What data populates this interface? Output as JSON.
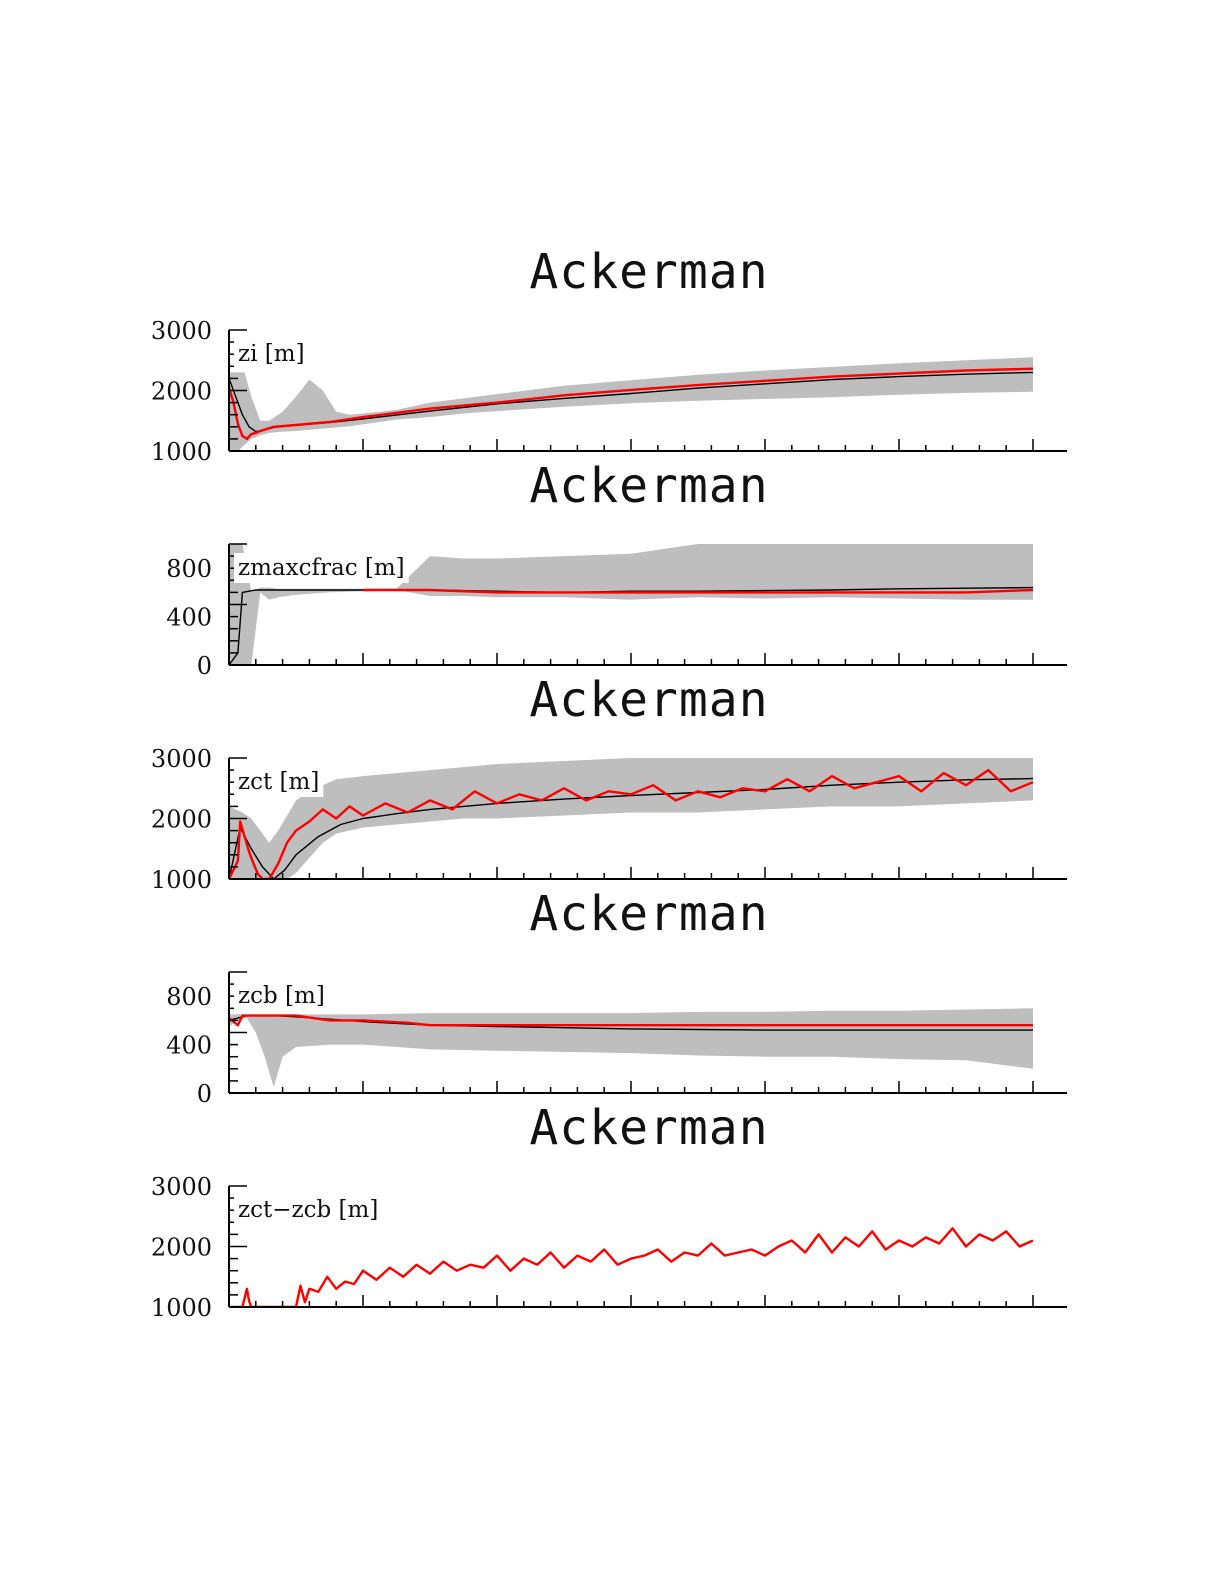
{
  "chart_data": [
    {
      "type": "line",
      "title": "Ackerman",
      "ylabel": "zi [m]",
      "ylim": [
        1000,
        3000
      ],
      "yticks": [
        "3000",
        "2000",
        "1000"
      ],
      "xlim": [
        0,
        360
      ],
      "xticks_major": [
        0,
        60,
        120,
        180,
        240,
        300,
        360
      ],
      "series": [
        {
          "role": "range",
          "color": "#bebebe",
          "x": [
            0,
            4,
            7,
            10,
            14,
            18,
            24,
            30,
            36,
            42,
            48,
            54,
            60,
            75,
            90,
            105,
            120,
            150,
            180,
            210,
            240,
            270,
            300,
            330,
            360
          ],
          "lower": [
            1000,
            1000,
            1100,
            1200,
            1260,
            1300,
            1320,
            1330,
            1350,
            1370,
            1390,
            1410,
            1440,
            1520,
            1560,
            1620,
            1660,
            1730,
            1790,
            1830,
            1860,
            1890,
            1930,
            1960,
            1980
          ],
          "upper": [
            2300,
            2300,
            2300,
            1900,
            1500,
            1500,
            1650,
            1900,
            2180,
            2000,
            1650,
            1600,
            1620,
            1680,
            1800,
            1870,
            1940,
            2080,
            2170,
            2260,
            2330,
            2390,
            2450,
            2500,
            2550
          ]
        },
        {
          "role": "mean",
          "color": "#000000",
          "x": [
            0,
            3,
            6,
            9,
            12,
            15,
            20,
            30,
            45,
            60,
            90,
            120,
            150,
            180,
            210,
            240,
            270,
            300,
            330,
            360
          ],
          "y": [
            2200,
            1900,
            1600,
            1400,
            1320,
            1340,
            1390,
            1430,
            1470,
            1530,
            1660,
            1780,
            1870,
            1950,
            2040,
            2110,
            2180,
            2230,
            2270,
            2300
          ]
        },
        {
          "role": "reference",
          "color": "#ff0000",
          "x": [
            0,
            2,
            4,
            6,
            8,
            10,
            12,
            14,
            20,
            30,
            45,
            60,
            90,
            120,
            150,
            180,
            210,
            240,
            270,
            300,
            330,
            360
          ],
          "y": [
            2050,
            1800,
            1450,
            1250,
            1200,
            1280,
            1300,
            1330,
            1400,
            1430,
            1480,
            1560,
            1700,
            1800,
            1920,
            2010,
            2090,
            2160,
            2230,
            2280,
            2330,
            2360
          ]
        }
      ]
    },
    {
      "type": "line",
      "title": "Ackerman",
      "ylabel": "zmaxcfrac [m]",
      "ylim": [
        0,
        1000
      ],
      "yticks": [
        "800",
        "400",
        "0"
      ],
      "xlim": [
        0,
        360
      ],
      "xticks_major": [
        0,
        60,
        120,
        180,
        240,
        300,
        360
      ],
      "series": [
        {
          "role": "range",
          "color": "#bebebe",
          "x": [
            0,
            2,
            6,
            10,
            14,
            18,
            22,
            30,
            45,
            60,
            75,
            90,
            105,
            120,
            150,
            180,
            210,
            240,
            270,
            300,
            330,
            360
          ],
          "lower": [
            0,
            0,
            0,
            0,
            600,
            540,
            560,
            580,
            600,
            610,
            620,
            570,
            570,
            560,
            560,
            540,
            560,
            550,
            560,
            550,
            540,
            540
          ],
          "upper": [
            1000,
            1000,
            1000,
            600,
            640,
            640,
            630,
            630,
            630,
            630,
            630,
            900,
            880,
            880,
            900,
            920,
            1000,
            1000,
            1000,
            1000,
            1000,
            1000
          ]
        },
        {
          "role": "mean",
          "color": "#000000",
          "x": [
            0,
            4,
            6,
            9,
            12,
            30,
            60,
            90,
            120,
            150,
            180,
            210,
            240,
            270,
            300,
            330,
            360
          ],
          "y": [
            0,
            100,
            600,
            610,
            620,
            620,
            620,
            620,
            610,
            600,
            610,
            610,
            615,
            620,
            630,
            635,
            640
          ]
        },
        {
          "role": "reference",
          "color": "#ff0000",
          "x": [
            60,
            90,
            120,
            150,
            180,
            210,
            240,
            270,
            300,
            330,
            360
          ],
          "y": [
            620,
            620,
            600,
            600,
            600,
            600,
            600,
            600,
            600,
            600,
            620
          ]
        }
      ]
    },
    {
      "type": "line",
      "title": "Ackerman",
      "ylabel": "zct [m]",
      "ylim": [
        1000,
        3000
      ],
      "yticks": [
        "3000",
        "2000",
        "1000"
      ],
      "xlim": [
        0,
        360
      ],
      "xticks_major": [
        0,
        60,
        120,
        180,
        240,
        300,
        360
      ],
      "series": [
        {
          "role": "range",
          "color": "#bebebe",
          "x": [
            0,
            6,
            10,
            14,
            18,
            22,
            26,
            30,
            36,
            42,
            48,
            60,
            75,
            90,
            105,
            120,
            150,
            180,
            210,
            240,
            270,
            300,
            330,
            360
          ],
          "lower": [
            1000,
            1000,
            1000,
            1000,
            1000,
            1000,
            1000,
            1100,
            1350,
            1600,
            1750,
            1850,
            1900,
            1950,
            2000,
            2000,
            2050,
            2100,
            2100,
            2150,
            2200,
            2200,
            2250,
            2300
          ],
          "upper": [
            2200,
            2100,
            2000,
            1800,
            1600,
            1800,
            2050,
            2300,
            2450,
            2550,
            2650,
            2700,
            2750,
            2800,
            2850,
            2900,
            2950,
            3000,
            3000,
            3000,
            3000,
            3000,
            3000,
            3000
          ]
        },
        {
          "role": "mean",
          "color": "#000000",
          "x": [
            0,
            5,
            10,
            15,
            20,
            25,
            30,
            40,
            50,
            60,
            75,
            90,
            105,
            120,
            150,
            180,
            210,
            240,
            270,
            300,
            330,
            360
          ],
          "y": [
            1000,
            1850,
            1500,
            1200,
            1000,
            1150,
            1400,
            1700,
            1900,
            2000,
            2080,
            2150,
            2200,
            2250,
            2320,
            2380,
            2430,
            2480,
            2550,
            2600,
            2640,
            2660
          ]
        },
        {
          "role": "reference",
          "color": "#ff0000",
          "x": [
            0,
            4,
            5,
            7,
            9,
            11,
            13,
            15,
            18,
            22,
            26,
            30,
            36,
            42,
            48,
            54,
            60,
            70,
            80,
            90,
            100,
            110,
            120,
            130,
            140,
            150,
            160,
            170,
            180,
            190,
            200,
            210,
            220,
            230,
            240,
            250,
            260,
            270,
            280,
            290,
            300,
            310,
            320,
            330,
            340,
            350,
            360
          ],
          "y": [
            1000,
            1300,
            1950,
            1700,
            1450,
            1250,
            1080,
            1000,
            1000,
            1250,
            1600,
            1800,
            1950,
            2150,
            2000,
            2200,
            2050,
            2250,
            2100,
            2300,
            2150,
            2450,
            2250,
            2400,
            2300,
            2500,
            2300,
            2450,
            2400,
            2550,
            2300,
            2450,
            2350,
            2500,
            2450,
            2650,
            2450,
            2700,
            2500,
            2600,
            2700,
            2450,
            2750,
            2550,
            2800,
            2450,
            2600
          ]
        }
      ]
    },
    {
      "type": "line",
      "title": "Ackerman",
      "ylabel": "zcb [m]",
      "ylim": [
        0,
        1000
      ],
      "yticks": [
        "800",
        "400",
        "0"
      ],
      "xlim": [
        0,
        360
      ],
      "xticks_major": [
        0,
        60,
        120,
        180,
        240,
        300,
        360
      ],
      "series": [
        {
          "role": "range",
          "color": "#bebebe",
          "x": [
            0,
            4,
            8,
            12,
            16,
            20,
            24,
            30,
            45,
            60,
            90,
            120,
            150,
            180,
            210,
            240,
            270,
            300,
            330,
            360
          ],
          "lower": [
            550,
            600,
            620,
            500,
            300,
            50,
            300,
            380,
            400,
            400,
            360,
            350,
            340,
            330,
            310,
            300,
            300,
            280,
            270,
            200
          ],
          "upper": [
            650,
            650,
            650,
            650,
            650,
            650,
            650,
            650,
            650,
            650,
            660,
            660,
            660,
            660,
            670,
            670,
            680,
            680,
            690,
            700
          ]
        },
        {
          "role": "mean",
          "color": "#000000",
          "x": [
            0,
            4,
            8,
            12,
            20,
            30,
            45,
            60,
            90,
            120,
            150,
            180,
            210,
            240,
            270,
            300,
            330,
            360
          ],
          "y": [
            600,
            620,
            640,
            640,
            640,
            630,
            610,
            590,
            560,
            550,
            540,
            530,
            525,
            520,
            520,
            520,
            520,
            520
          ]
        },
        {
          "role": "reference",
          "color": "#ff0000",
          "x": [
            0,
            4,
            6,
            10,
            20,
            30,
            45,
            60,
            80,
            90,
            100,
            120,
            140,
            160,
            180,
            200,
            220,
            240,
            260,
            280,
            300,
            320,
            340,
            360
          ],
          "y": [
            620,
            560,
            640,
            640,
            640,
            640,
            600,
            600,
            580,
            560,
            560,
            560,
            560,
            560,
            560,
            560,
            560,
            560,
            560,
            560,
            560,
            560,
            560,
            560
          ]
        }
      ]
    },
    {
      "type": "line",
      "title": "Ackerman",
      "ylabel": "zct−zcb [m]",
      "ylim": [
        1000,
        3000
      ],
      "yticks": [
        "3000",
        "2000",
        "1000"
      ],
      "xlim": [
        0,
        360
      ],
      "xticks_major": [
        0,
        60,
        120,
        180,
        240,
        300,
        360
      ],
      "series": [
        {
          "role": "reference",
          "color": "#ff0000",
          "x": [
            0,
            6,
            8,
            9,
            10,
            30,
            32,
            34,
            36,
            40,
            44,
            48,
            52,
            56,
            60,
            66,
            72,
            78,
            84,
            90,
            96,
            102,
            108,
            114,
            120,
            126,
            132,
            138,
            144,
            150,
            156,
            162,
            168,
            174,
            180,
            186,
            192,
            198,
            204,
            210,
            216,
            222,
            228,
            234,
            240,
            246,
            252,
            258,
            264,
            270,
            276,
            282,
            288,
            294,
            300,
            306,
            312,
            318,
            324,
            330,
            336,
            342,
            348,
            354,
            360
          ],
          "y": [
            1000,
            1000,
            1300,
            1100,
            1000,
            1000,
            1350,
            1080,
            1300,
            1250,
            1500,
            1300,
            1420,
            1380,
            1600,
            1450,
            1650,
            1500,
            1700,
            1550,
            1750,
            1600,
            1700,
            1650,
            1850,
            1600,
            1800,
            1700,
            1900,
            1650,
            1850,
            1750,
            1950,
            1700,
            1800,
            1850,
            1950,
            1750,
            1900,
            1850,
            2050,
            1850,
            1900,
            1950,
            1850,
            2000,
            2100,
            1900,
            2200,
            1900,
            2150,
            2000,
            2250,
            1950,
            2100,
            2000,
            2150,
            2050,
            2300,
            2000,
            2200,
            2100,
            2250,
            2000,
            2100
          ]
        }
      ]
    }
  ]
}
